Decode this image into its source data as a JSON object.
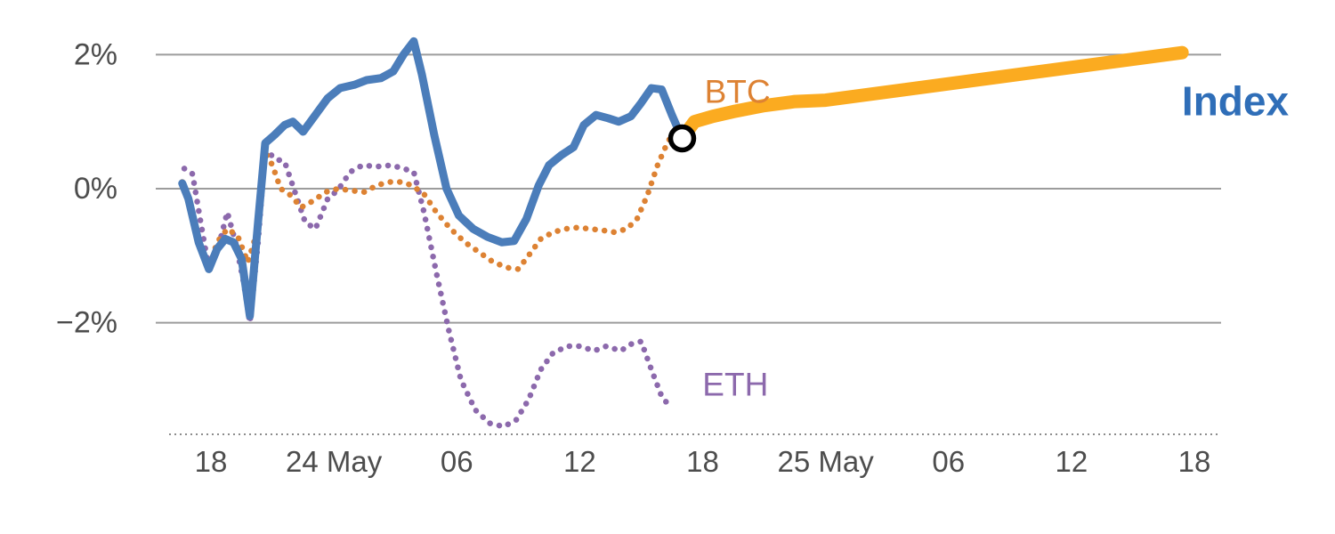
{
  "chart_data": {
    "type": "line",
    "title": "",
    "x_axis": {
      "ticks": [
        {
          "t": 0,
          "label": "18"
        },
        {
          "t": 6,
          "label": "24 May"
        },
        {
          "t": 12,
          "label": "06"
        },
        {
          "t": 18,
          "label": "12"
        },
        {
          "t": 24,
          "label": "18"
        },
        {
          "t": 30,
          "label": "25 May"
        },
        {
          "t": 36,
          "label": "06"
        },
        {
          "t": 42,
          "label": "12"
        },
        {
          "t": 48,
          "label": "18"
        }
      ]
    },
    "y_axis": {
      "ticks": [
        {
          "v": 2,
          "label": "2%"
        },
        {
          "v": 0,
          "label": "0%"
        },
        {
          "v": -2,
          "label": "−2%"
        }
      ],
      "ylim": [
        -3.7,
        2.6
      ],
      "grid": true
    },
    "series": [
      {
        "name": "eth",
        "label": "ETH",
        "color": "#8c69ac",
        "style": "dotted",
        "width": 6.5,
        "points": [
          [
            -1.3,
            0.3
          ],
          [
            -0.9,
            0.22
          ],
          [
            -0.5,
            -0.5
          ],
          [
            -0.1,
            -1.2
          ],
          [
            0.3,
            -0.95
          ],
          [
            0.8,
            -0.35
          ],
          [
            1.2,
            -0.8
          ],
          [
            1.6,
            -1.4
          ],
          [
            1.9,
            -2.0
          ],
          [
            2.3,
            -0.8
          ],
          [
            2.65,
            0.6
          ],
          [
            3.1,
            0.45
          ],
          [
            3.6,
            0.4
          ],
          [
            4.1,
            -0.05
          ],
          [
            4.6,
            -0.5
          ],
          [
            5.1,
            -0.6
          ],
          [
            5.7,
            -0.15
          ],
          [
            6.2,
            -0.02
          ],
          [
            6.8,
            0.25
          ],
          [
            7.4,
            0.35
          ],
          [
            8.1,
            0.33
          ],
          [
            8.8,
            0.35
          ],
          [
            9.4,
            0.3
          ],
          [
            9.9,
            0.25
          ],
          [
            10.4,
            -0.35
          ],
          [
            11.0,
            -1.25
          ],
          [
            11.6,
            -2.1
          ],
          [
            12.2,
            -2.85
          ],
          [
            12.9,
            -3.3
          ],
          [
            13.6,
            -3.5
          ],
          [
            14.3,
            -3.55
          ],
          [
            14.9,
            -3.45
          ],
          [
            15.5,
            -3.15
          ],
          [
            16.1,
            -2.7
          ],
          [
            16.7,
            -2.45
          ],
          [
            17.4,
            -2.35
          ],
          [
            18.0,
            -2.35
          ],
          [
            18.7,
            -2.42
          ],
          [
            19.3,
            -2.35
          ],
          [
            20.0,
            -2.42
          ],
          [
            20.5,
            -2.32
          ],
          [
            21.0,
            -2.28
          ],
          [
            21.5,
            -2.7
          ],
          [
            22.0,
            -3.1
          ],
          [
            22.4,
            -3.25
          ]
        ]
      },
      {
        "name": "btc",
        "label": "BTC",
        "color": "#dd8233",
        "style": "dotted",
        "width": 6.5,
        "points": [
          [
            -1.4,
            0.1
          ],
          [
            -1.0,
            -0.25
          ],
          [
            -0.5,
            -0.9
          ],
          [
            -0.1,
            -1.2
          ],
          [
            0.3,
            -0.8
          ],
          [
            0.8,
            -0.6
          ],
          [
            1.3,
            -0.7
          ],
          [
            1.8,
            -1.1
          ],
          [
            2.2,
            -0.7
          ],
          [
            2.65,
            0.55
          ],
          [
            3.0,
            0.35
          ],
          [
            3.4,
            0.0
          ],
          [
            3.9,
            -0.1
          ],
          [
            4.4,
            -0.28
          ],
          [
            5.0,
            -0.18
          ],
          [
            5.6,
            -0.05
          ],
          [
            6.2,
            0.0
          ],
          [
            6.9,
            -0.03
          ],
          [
            7.5,
            -0.05
          ],
          [
            8.1,
            0.05
          ],
          [
            8.7,
            0.1
          ],
          [
            9.3,
            0.1
          ],
          [
            9.8,
            0.05
          ],
          [
            10.4,
            -0.08
          ],
          [
            11.0,
            -0.35
          ],
          [
            11.7,
            -0.6
          ],
          [
            12.4,
            -0.8
          ],
          [
            13.1,
            -0.95
          ],
          [
            13.8,
            -1.1
          ],
          [
            14.5,
            -1.18
          ],
          [
            15.0,
            -1.2
          ],
          [
            15.5,
            -1.0
          ],
          [
            16.1,
            -0.75
          ],
          [
            16.7,
            -0.65
          ],
          [
            17.3,
            -0.6
          ],
          [
            17.9,
            -0.58
          ],
          [
            18.5,
            -0.6
          ],
          [
            19.1,
            -0.62
          ],
          [
            19.7,
            -0.65
          ],
          [
            20.3,
            -0.6
          ],
          [
            20.8,
            -0.45
          ],
          [
            21.3,
            -0.1
          ],
          [
            21.8,
            0.35
          ],
          [
            22.3,
            0.7
          ],
          [
            22.7,
            0.88
          ],
          [
            23.0,
            0.8
          ]
        ]
      },
      {
        "name": "index_highlight",
        "label": "Index",
        "color": "#fbab20",
        "style": "solid",
        "width": 15,
        "points": [
          [
            23.0,
            0.75
          ],
          [
            23.6,
            1.0
          ],
          [
            24.5,
            1.08
          ],
          [
            25.5,
            1.15
          ],
          [
            27.0,
            1.24
          ],
          [
            28.5,
            1.3
          ],
          [
            30.0,
            1.32
          ],
          [
            47.4,
            2.03
          ]
        ]
      },
      {
        "name": "index",
        "label": "Index",
        "color": "#4b7dba",
        "style": "solid",
        "width": 9,
        "points": [
          [
            -1.4,
            0.08
          ],
          [
            -1.1,
            -0.15
          ],
          [
            -0.6,
            -0.8
          ],
          [
            -0.1,
            -1.2
          ],
          [
            0.3,
            -0.9
          ],
          [
            0.7,
            -0.75
          ],
          [
            1.1,
            -0.8
          ],
          [
            1.5,
            -1.05
          ],
          [
            1.9,
            -1.9
          ],
          [
            2.3,
            -0.5
          ],
          [
            2.65,
            0.68
          ],
          [
            3.1,
            0.8
          ],
          [
            3.6,
            0.95
          ],
          [
            4.0,
            1.0
          ],
          [
            4.5,
            0.85
          ],
          [
            5.1,
            1.1
          ],
          [
            5.7,
            1.35
          ],
          [
            6.3,
            1.5
          ],
          [
            7.0,
            1.55
          ],
          [
            7.6,
            1.62
          ],
          [
            8.3,
            1.65
          ],
          [
            8.9,
            1.75
          ],
          [
            9.4,
            2.0
          ],
          [
            9.9,
            2.2
          ],
          [
            10.3,
            1.7
          ],
          [
            10.9,
            0.8
          ],
          [
            11.5,
            0.0
          ],
          [
            12.1,
            -0.4
          ],
          [
            12.8,
            -0.6
          ],
          [
            13.5,
            -0.72
          ],
          [
            14.2,
            -0.8
          ],
          [
            14.8,
            -0.78
          ],
          [
            15.4,
            -0.45
          ],
          [
            16.0,
            0.05
          ],
          [
            16.5,
            0.35
          ],
          [
            17.1,
            0.5
          ],
          [
            17.7,
            0.62
          ],
          [
            18.2,
            0.95
          ],
          [
            18.8,
            1.1
          ],
          [
            19.4,
            1.05
          ],
          [
            19.9,
            1.0
          ],
          [
            20.5,
            1.08
          ],
          [
            21.0,
            1.28
          ],
          [
            21.5,
            1.5
          ],
          [
            22.0,
            1.48
          ],
          [
            22.5,
            1.1
          ],
          [
            23.0,
            0.75
          ]
        ]
      }
    ],
    "marker": {
      "t": 23.0,
      "v": 0.75,
      "style": "open-circle",
      "radius": 13,
      "stroke_color": "#000000",
      "stroke_width": 5.5,
      "fill": "#ffffff"
    },
    "annotations": [
      {
        "text": "BTC",
        "color": "#dd8233",
        "t": 25.7,
        "v": 1.45,
        "size": 37,
        "bold": false
      },
      {
        "text": "ETH",
        "color": "#8c69ac",
        "t": 25.6,
        "v": -2.92,
        "size": 37,
        "bold": false
      },
      {
        "text": "Index",
        "color": "#2f6eb8",
        "t": 50.0,
        "v": 1.31,
        "size": 46,
        "bold": true
      }
    ],
    "colors": {
      "grid": "#9c9c9c",
      "axis": "#8c8c8c",
      "tick_text": "#4d4d4d",
      "background": "#ffffff"
    }
  }
}
